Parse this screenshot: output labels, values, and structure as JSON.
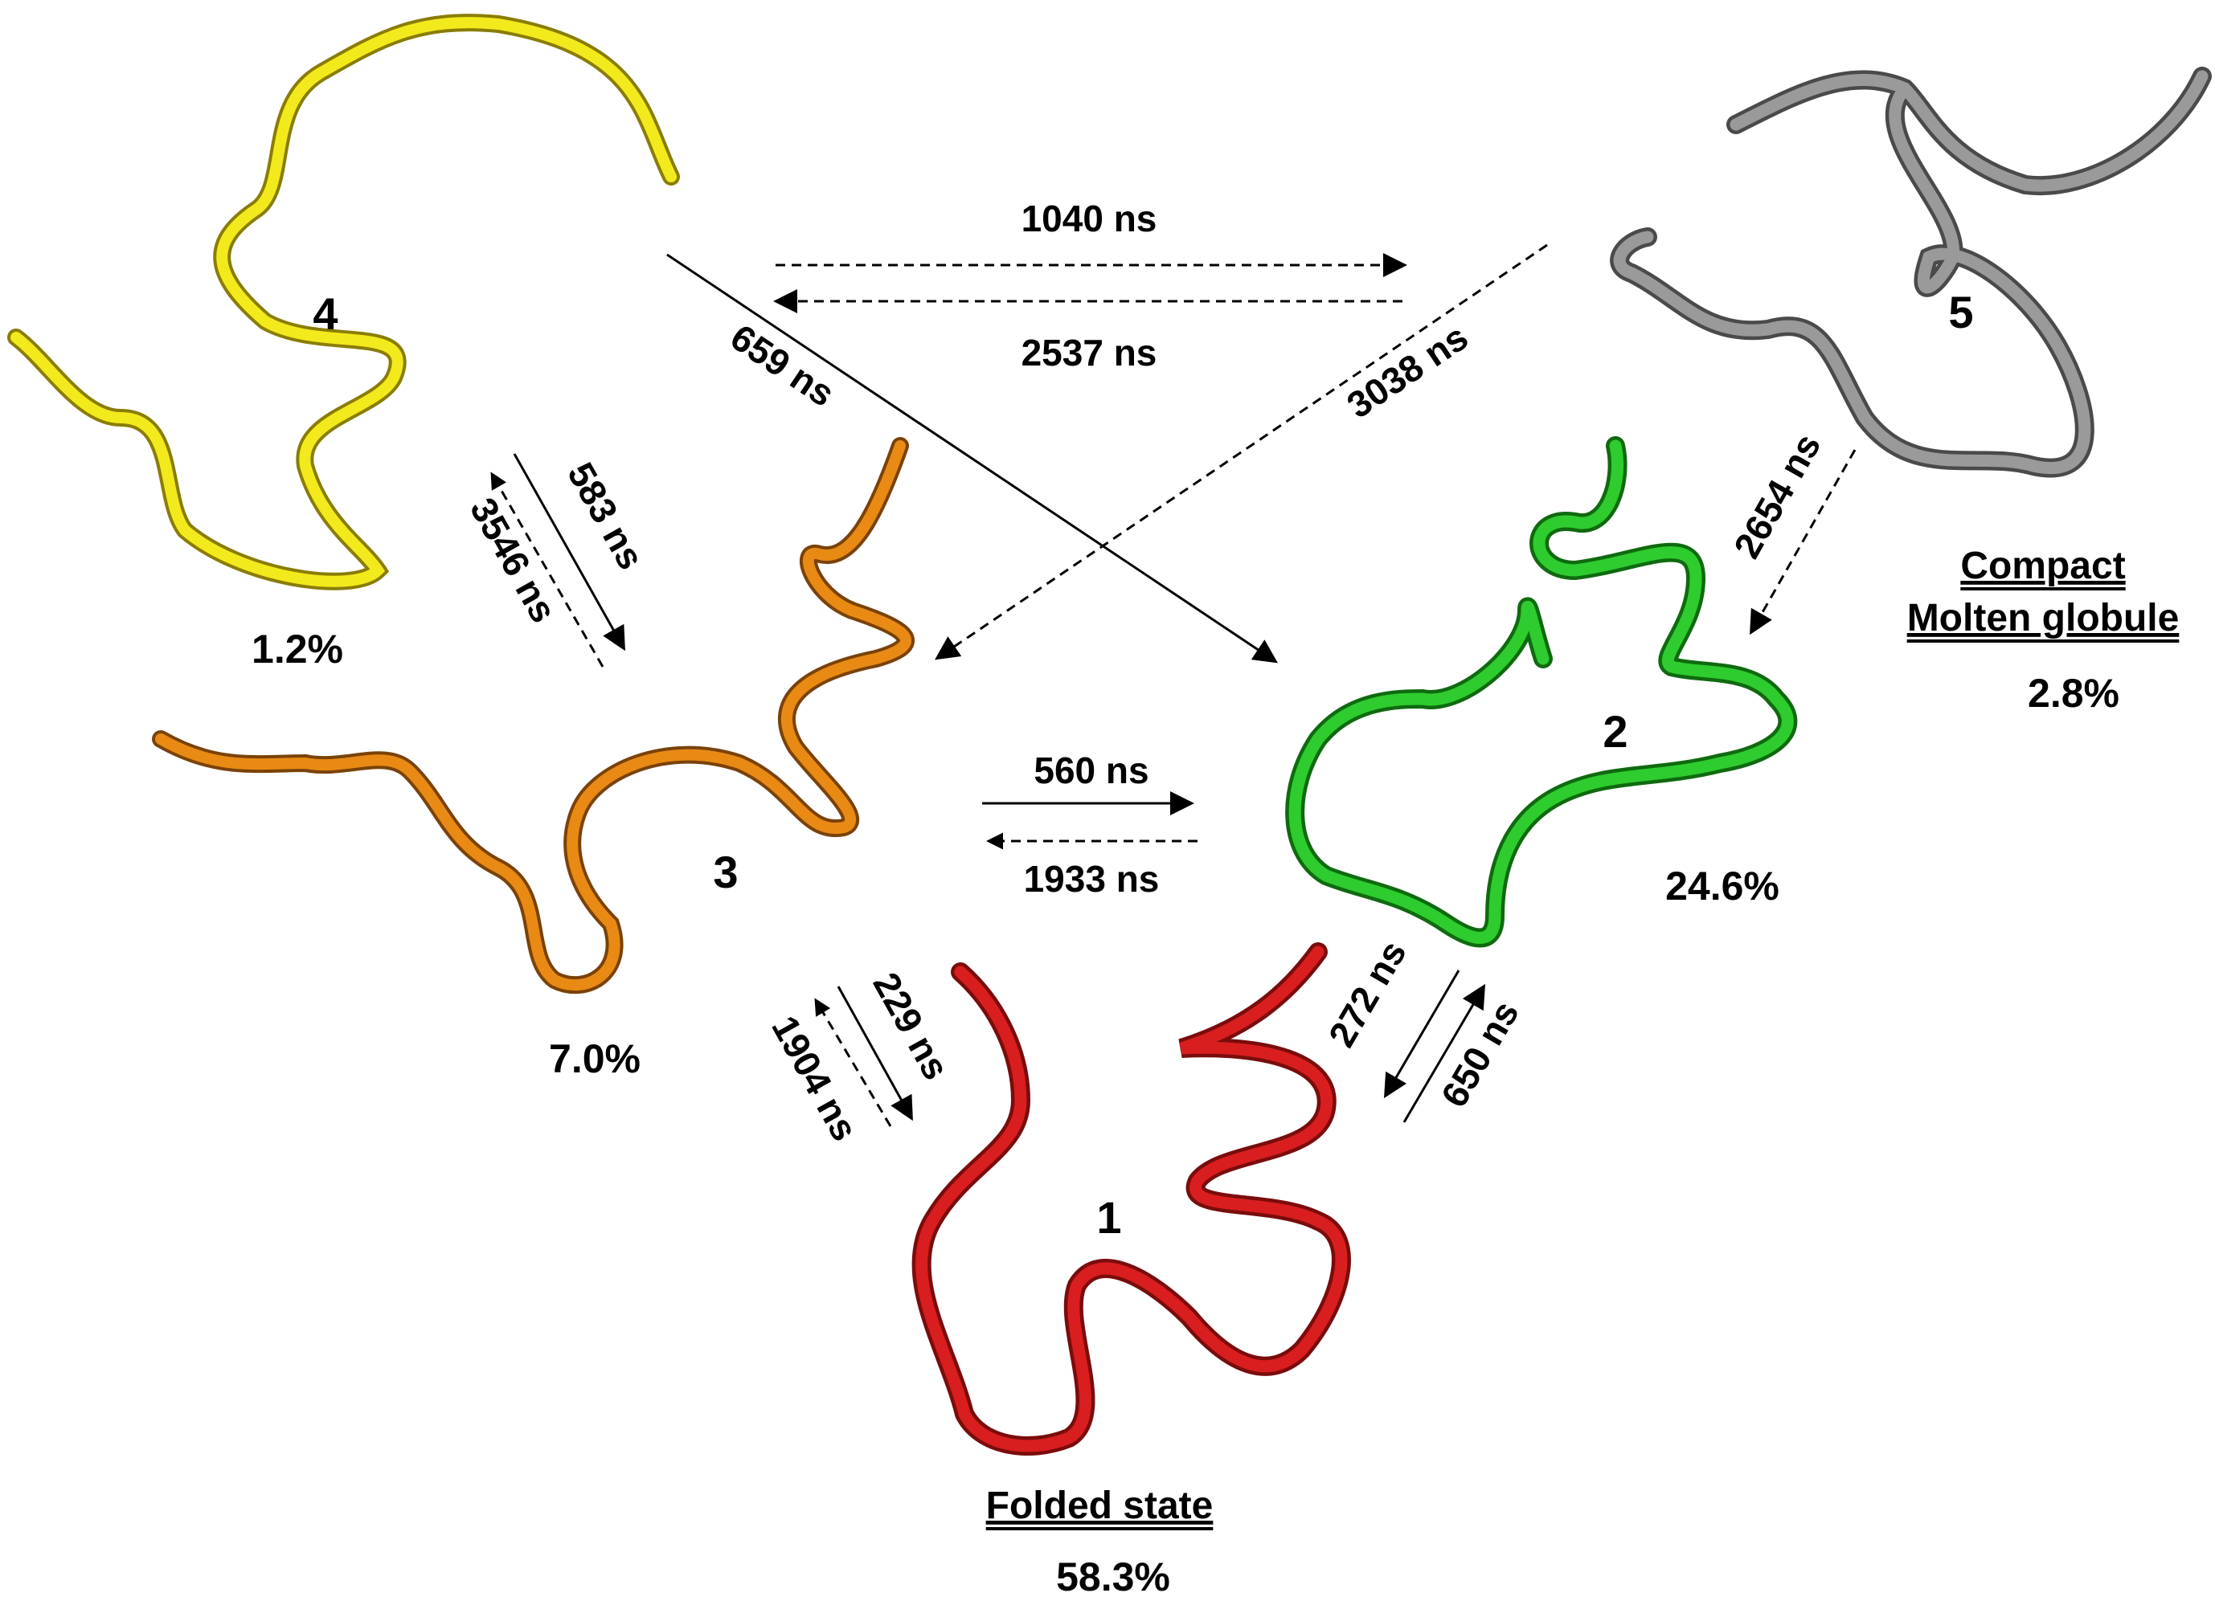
{
  "states": [
    {
      "id": "1",
      "percent": "58.3%",
      "caption": "Folded state",
      "color": "#d81e1e"
    },
    {
      "id": "2",
      "percent": "24.6%",
      "caption": "",
      "color": "#2ecc2e"
    },
    {
      "id": "3",
      "percent": "7.0%",
      "caption": "",
      "color": "#e88a14"
    },
    {
      "id": "4",
      "percent": "1.2%",
      "caption": "",
      "color": "#f2ea1c"
    },
    {
      "id": "5",
      "percent": "2.8%",
      "caption_lines": [
        "Compact",
        "Molten globule"
      ],
      "color": "#8c8c8c"
    }
  ],
  "transitions": {
    "t4_to_5": "1040 ns",
    "t5_to_4": "2537 ns",
    "t4_to_2": "659 ns",
    "t5_to_3": "3038 ns",
    "t4_to_3": "583 ns",
    "t3_to_4": "3546 ns",
    "t5_to_2": "2654 ns",
    "t3_to_2": "560 ns",
    "t2_to_3": "1933 ns",
    "t3_to_1": "229 ns",
    "t1_to_3": "1904 ns",
    "t2_to_1": "272 ns",
    "t1_to_2": "650 ns"
  }
}
